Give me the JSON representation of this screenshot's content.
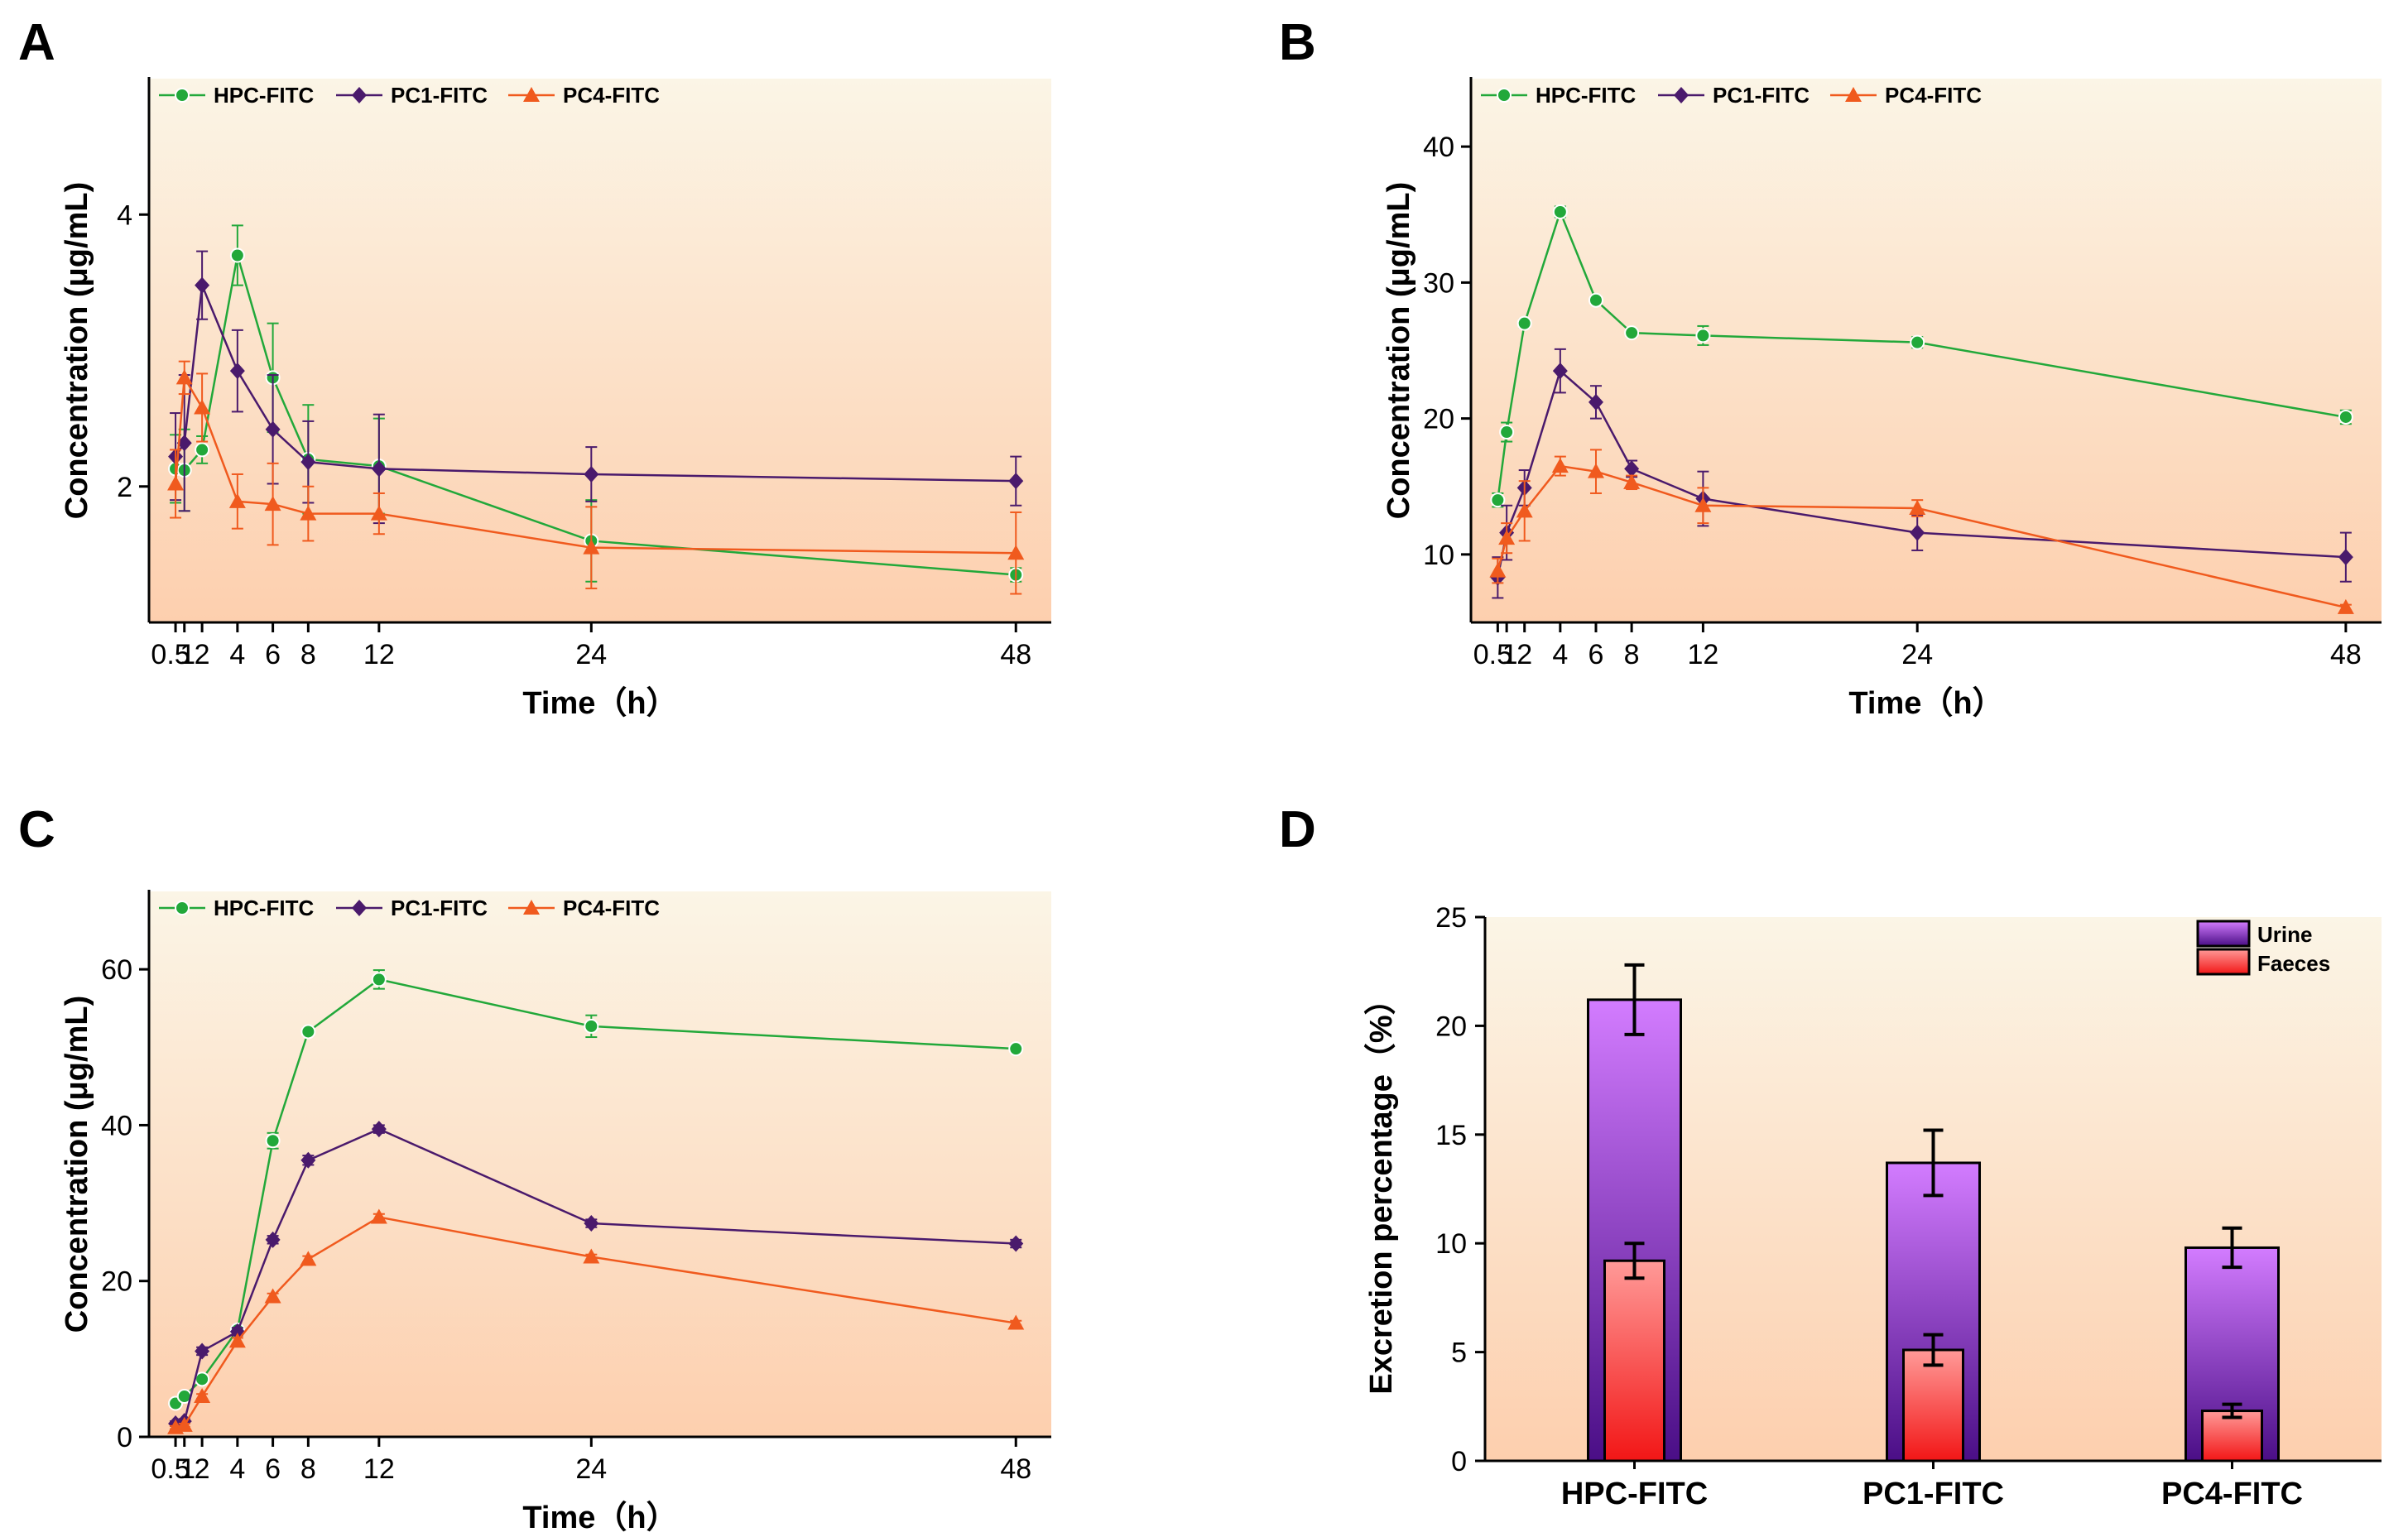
{
  "colors": {
    "HPC-FITC": "#22a83a",
    "PC1-FITC": "#4a1a6c",
    "PC4-FITC": "#f05a1e",
    "bg_top": "#fbf5e6",
    "bg_bottom": "#fdcfae",
    "urine_top": "#d37cff",
    "urine_bottom": "#4a0e86",
    "faeces_top": "#ff9a98",
    "faeces_bottom": "#f21616"
  },
  "chart_data": [
    {
      "panel": "A",
      "type": "line",
      "xlabel": "Time（h）",
      "ylabel": "Concentration (μg/mL)",
      "x": [
        0.5,
        1,
        2,
        4,
        6,
        8,
        12,
        24,
        48
      ],
      "x_tick_labels": [
        "0.5",
        "1",
        "2",
        "4",
        "6",
        "8",
        "12",
        "24",
        "48"
      ],
      "xlim": [
        -1,
        50
      ],
      "ylim": [
        1,
        5
      ],
      "y_ticks": [
        2,
        4
      ],
      "legend": "top-left",
      "series": [
        {
          "name": "HPC-FITC",
          "marker": "circle",
          "values": [
            2.13,
            2.12,
            2.27,
            3.7,
            2.8,
            2.2,
            2.15,
            1.6,
            1.35
          ],
          "errors": [
            0.25,
            0.3,
            0.1,
            0.22,
            0.4,
            0.4,
            0.35,
            0.3,
            0.05
          ]
        },
        {
          "name": "PC1-FITC",
          "marker": "diamond",
          "values": [
            2.22,
            2.32,
            3.48,
            2.85,
            2.42,
            2.18,
            2.13,
            2.09,
            2.04
          ],
          "errors": [
            0.32,
            0.5,
            0.25,
            0.3,
            0.4,
            0.3,
            0.4,
            0.2,
            0.18
          ]
        },
        {
          "name": "PC4-FITC",
          "marker": "triangle",
          "values": [
            2.02,
            2.8,
            2.58,
            1.89,
            1.87,
            1.8,
            1.8,
            1.55,
            1.51
          ],
          "errors": [
            0.25,
            0.12,
            0.25,
            0.2,
            0.3,
            0.2,
            0.15,
            0.3,
            0.3
          ]
        }
      ]
    },
    {
      "panel": "B",
      "type": "line",
      "xlabel": "Time（h）",
      "ylabel": "Concentration (μg/mL)",
      "x": [
        0.5,
        1,
        2,
        4,
        6,
        8,
        12,
        24,
        48
      ],
      "x_tick_labels": [
        "0.5",
        "1",
        "2",
        "4",
        "6",
        "8",
        "12",
        "24",
        "48"
      ],
      "xlim": [
        -1,
        50
      ],
      "ylim": [
        5,
        45
      ],
      "y_ticks": [
        10,
        20,
        30,
        40
      ],
      "legend": "top-left",
      "series": [
        {
          "name": "HPC-FITC",
          "marker": "circle",
          "values": [
            14,
            19,
            27,
            35.2,
            28.7,
            26.3,
            26.1,
            25.6,
            20.1
          ],
          "errors": [
            0.5,
            0.7,
            0.3,
            0.4,
            0.3,
            0.3,
            0.7,
            0.4,
            0.5
          ]
        },
        {
          "name": "PC1-FITC",
          "marker": "diamond",
          "values": [
            8.3,
            11.6,
            14.9,
            23.5,
            21.2,
            16.3,
            14.1,
            11.6,
            9.8
          ],
          "errors": [
            1.5,
            2.0,
            1.3,
            1.6,
            1.2,
            0.6,
            2.0,
            1.3,
            1.8
          ]
        },
        {
          "name": "PC4-FITC",
          "marker": "triangle",
          "values": [
            8.8,
            11.2,
            13.2,
            16.5,
            16.1,
            15.3,
            13.6,
            13.4,
            6.1
          ],
          "errors": [
            0.9,
            1.1,
            2.2,
            0.7,
            1.6,
            0.5,
            1.3,
            0.6,
            0.2
          ]
        }
      ]
    },
    {
      "panel": "C",
      "type": "line",
      "xlabel": "Time（h）",
      "ylabel": "Concentration (μg/mL)",
      "x": [
        0.5,
        1,
        2,
        4,
        6,
        8,
        12,
        24,
        48
      ],
      "x_tick_labels": [
        "0.5",
        "1",
        "2",
        "4",
        "6",
        "8",
        "12",
        "24",
        "48"
      ],
      "xlim": [
        -1,
        50
      ],
      "ylim": [
        0,
        70
      ],
      "y_ticks": [
        0,
        20,
        40,
        60
      ],
      "legend": "top-left",
      "series": [
        {
          "name": "HPC-FITC",
          "marker": "circle",
          "values": [
            4.3,
            5.2,
            7.4,
            13.7,
            38,
            52,
            58.7,
            52.7,
            49.8
          ],
          "errors": [
            0.3,
            0.3,
            0.3,
            0.4,
            1.0,
            0.5,
            1.2,
            1.4,
            0.4
          ]
        },
        {
          "name": "PC1-FITC",
          "marker": "diamond",
          "values": [
            1.7,
            2.0,
            11.0,
            13.5,
            25.3,
            35.5,
            39.5,
            27.4,
            24.8
          ],
          "errors": [
            0.3,
            0.3,
            0.5,
            0.5,
            0.5,
            0.6,
            0.5,
            0.5,
            0.5
          ]
        },
        {
          "name": "PC4-FITC",
          "marker": "triangle",
          "values": [
            1.2,
            1.5,
            5.2,
            12.3,
            18.0,
            22.8,
            28.2,
            23.1,
            14.6
          ],
          "errors": [
            0.2,
            0.2,
            0.3,
            0.4,
            0.4,
            0.4,
            0.4,
            0.3,
            0.3
          ]
        }
      ]
    },
    {
      "panel": "D",
      "type": "bar",
      "categories": [
        "HPC-FITC",
        "PC1-FITC",
        "PC4-FITC"
      ],
      "ylabel": "Excretion percentage（%）",
      "xlabel": "",
      "ylim": [
        0,
        25
      ],
      "y_ticks": [
        0,
        5,
        10,
        15,
        20,
        25
      ],
      "legend": "top-right",
      "series": [
        {
          "name": "Urine",
          "values": [
            21.2,
            13.7,
            9.8
          ],
          "errors": [
            1.6,
            1.5,
            0.9
          ]
        },
        {
          "name": "Faeces",
          "values": [
            9.2,
            5.1,
            2.3
          ],
          "errors": [
            0.8,
            0.7,
            0.3
          ]
        }
      ]
    }
  ]
}
